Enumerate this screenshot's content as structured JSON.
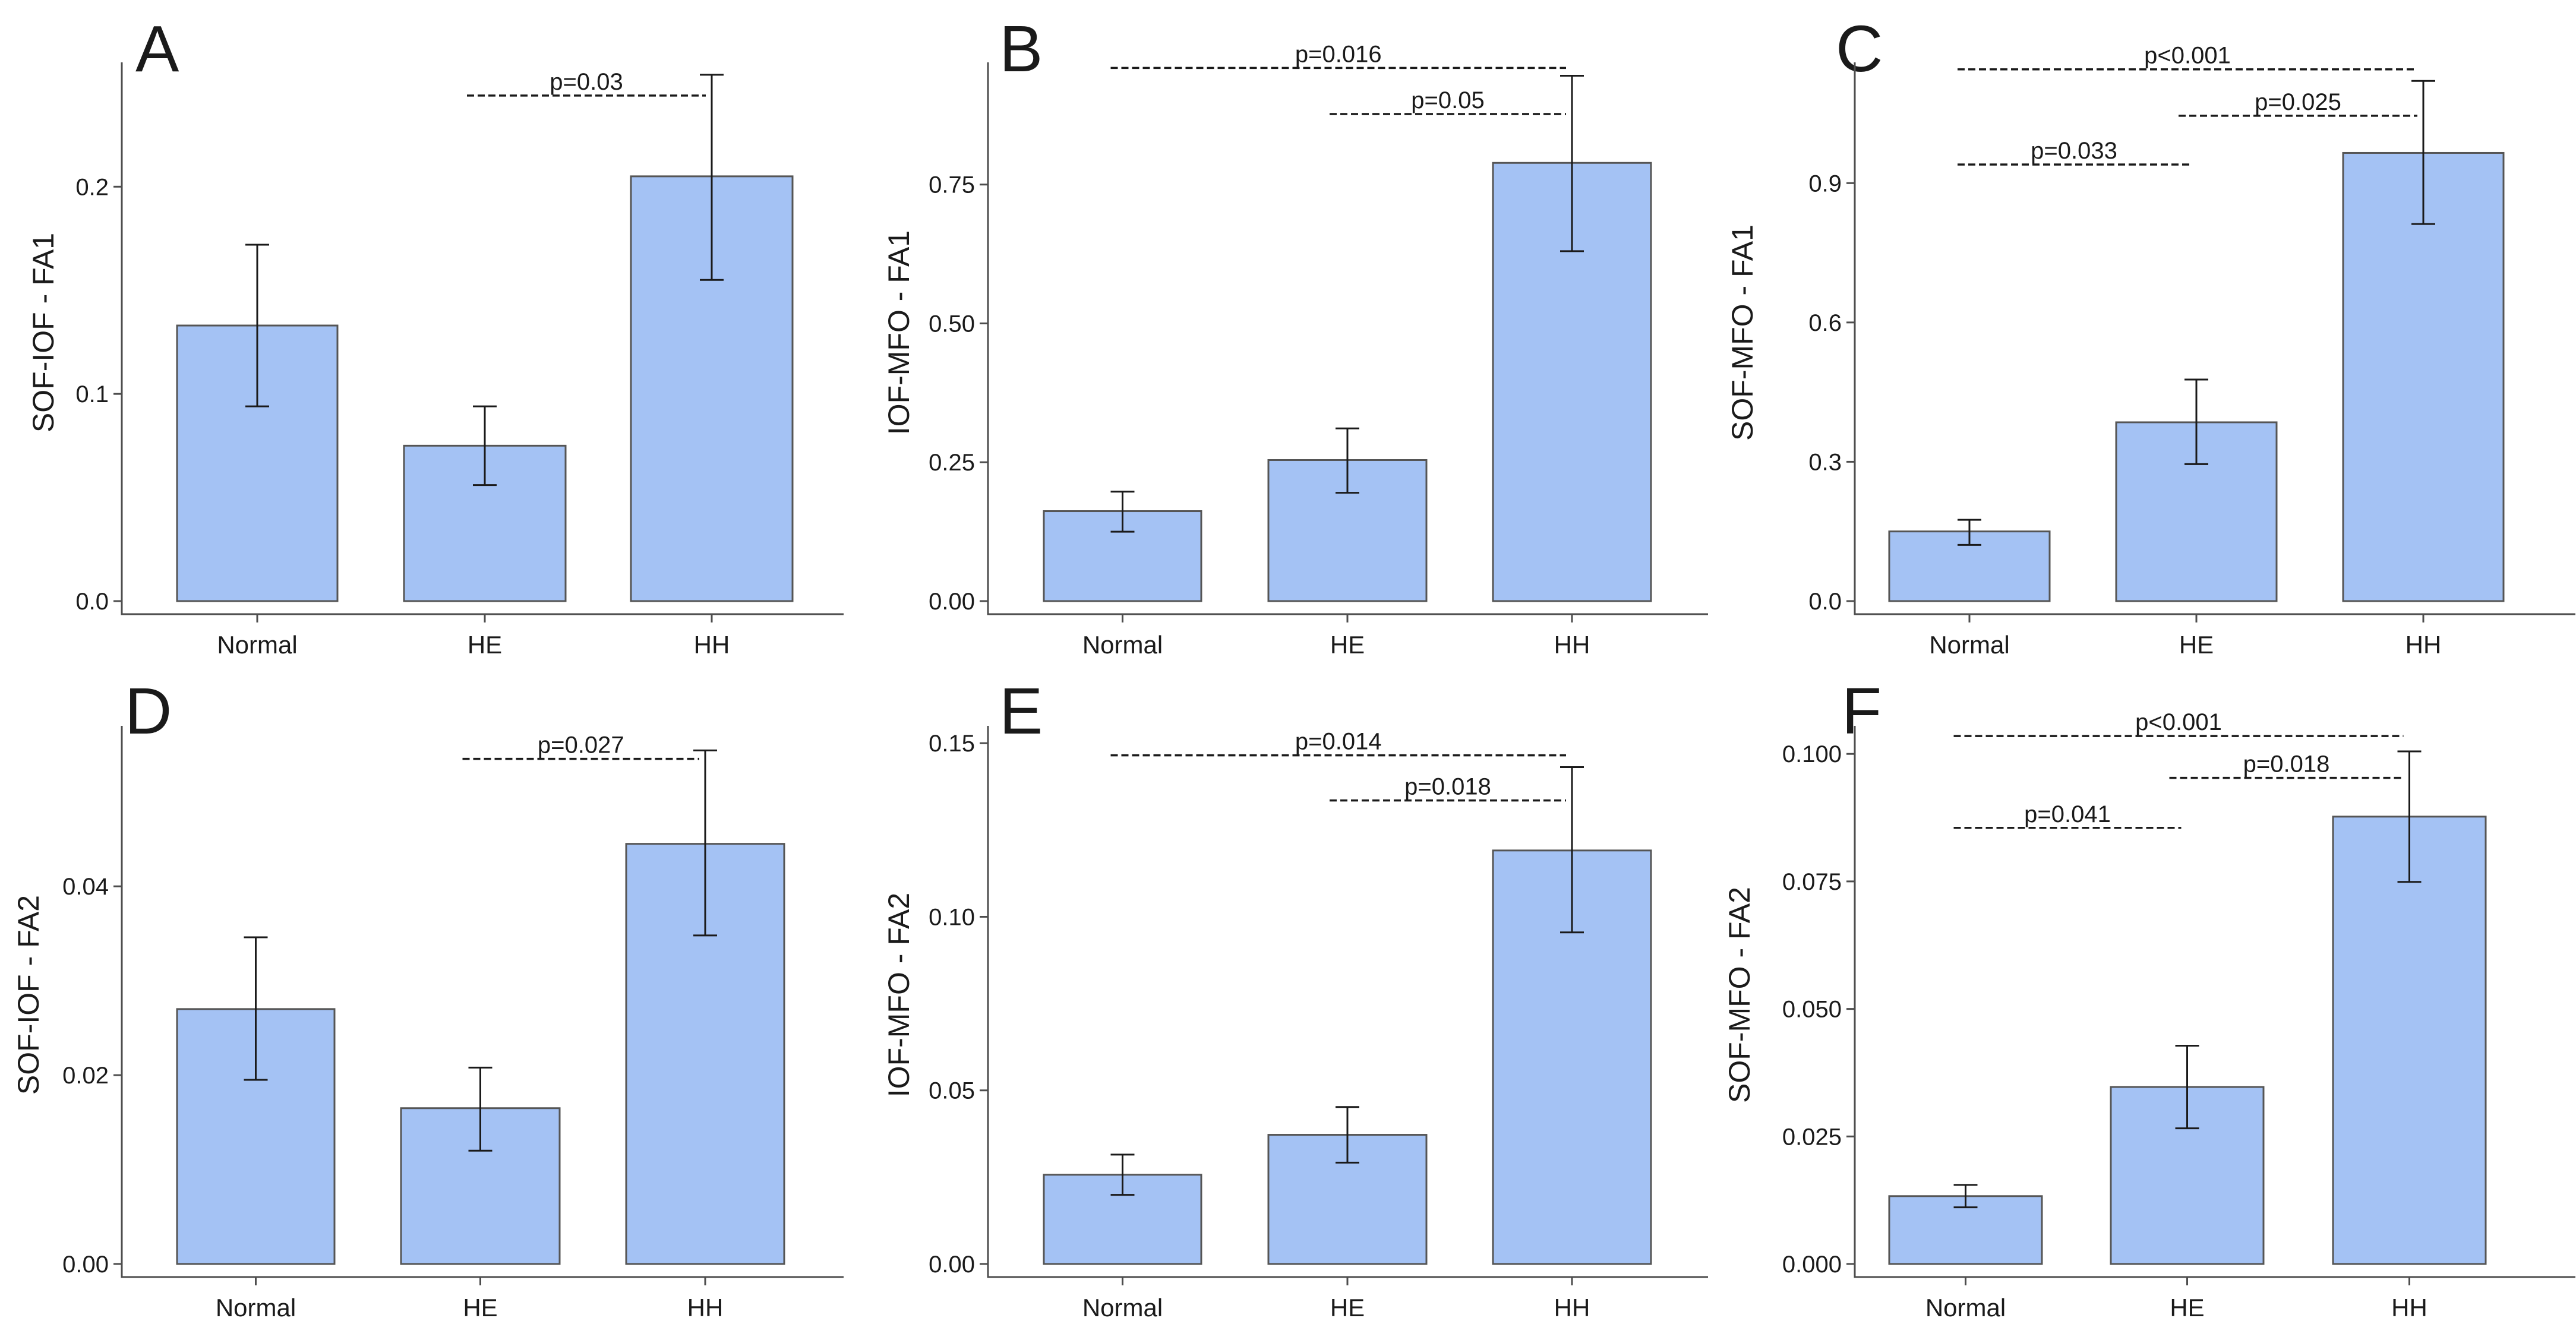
{
  "chart_data": [
    {
      "panel": "A",
      "type": "bar",
      "ylabel": "SOF-IOF - FA1",
      "categories": [
        "Normal",
        "HE",
        "HH"
      ],
      "values": [
        0.133,
        0.075,
        0.205
      ],
      "error_low": [
        0.094,
        0.056,
        0.155
      ],
      "error_high": [
        0.172,
        0.094,
        0.254
      ],
      "ylim": [
        0,
        0.26
      ],
      "yticks": [
        0.0,
        0.1,
        0.2
      ],
      "ytick_labels": [
        "0.0",
        "0.1",
        "0.2"
      ],
      "annotations": [
        {
          "label": "p=0.03",
          "x1": 1,
          "x2": 2,
          "y": 0.244
        }
      ]
    },
    {
      "panel": "B",
      "type": "bar",
      "ylabel": "IOF-MFO - FA1",
      "categories": [
        "Normal",
        "HE",
        "HH"
      ],
      "values": [
        0.162,
        0.254,
        0.789
      ],
      "error_low": [
        0.125,
        0.195,
        0.63
      ],
      "error_high": [
        0.197,
        0.311,
        0.946
      ],
      "ylim": [
        0,
        0.97
      ],
      "yticks": [
        0.0,
        0.25,
        0.5,
        0.75
      ],
      "ytick_labels": [
        "0.00",
        "0.25",
        "0.50",
        "0.75"
      ],
      "annotations": [
        {
          "label": "p=0.016",
          "x1": 0,
          "x2": 2,
          "y": 0.96
        },
        {
          "label": "p=0.05",
          "x1": 1,
          "x2": 2,
          "y": 0.877
        }
      ]
    },
    {
      "panel": "C",
      "type": "bar",
      "ylabel": "SOF-MFO - FA1",
      "categories": [
        "Normal",
        "HE",
        "HH"
      ],
      "values": [
        0.15,
        0.385,
        0.965
      ],
      "error_low": [
        0.121,
        0.295,
        0.812
      ],
      "error_high": [
        0.175,
        0.477,
        1.12
      ],
      "ylim": [
        0,
        1.16
      ],
      "yticks": [
        0.0,
        0.3,
        0.6,
        0.9
      ],
      "ytick_labels": [
        "0.0",
        "0.3",
        "0.6",
        "0.9"
      ],
      "annotations": [
        {
          "label": "p<0.001",
          "x1": 0,
          "x2": 2,
          "y": 1.145
        },
        {
          "label": "p=0.025",
          "x1": 1,
          "x2": 2,
          "y": 1.045
        },
        {
          "label": "p=0.033",
          "x1": 0,
          "x2": 1,
          "y": 0.94
        }
      ]
    },
    {
      "panel": "D",
      "type": "bar",
      "ylabel": "SOF-IOF - FA2",
      "categories": [
        "Normal",
        "HE",
        "HH"
      ],
      "values": [
        0.027,
        0.0165,
        0.0445
      ],
      "error_low": [
        0.0195,
        0.012,
        0.0348
      ],
      "error_high": [
        0.0346,
        0.0208,
        0.0544
      ],
      "ylim": [
        0,
        0.057
      ],
      "yticks": [
        0.0,
        0.02,
        0.04
      ],
      "ytick_labels": [
        "0.00",
        "0.02",
        "0.04"
      ],
      "annotations": [
        {
          "label": "p=0.027",
          "x1": 1,
          "x2": 2,
          "y": 0.0535
        }
      ]
    },
    {
      "panel": "E",
      "type": "bar",
      "ylabel": "IOF-MFO - FA2",
      "categories": [
        "Normal",
        "HE",
        "HH"
      ],
      "values": [
        0.0257,
        0.0372,
        0.1191
      ],
      "error_low": [
        0.0199,
        0.0292,
        0.0955
      ],
      "error_high": [
        0.0315,
        0.0452,
        0.1431
      ],
      "ylim": [
        0,
        0.155
      ],
      "yticks": [
        0.0,
        0.05,
        0.1,
        0.15
      ],
      "ytick_labels": [
        "0.00",
        "0.05",
        "0.10",
        "0.15"
      ],
      "annotations": [
        {
          "label": "p=0.014",
          "x1": 0,
          "x2": 2,
          "y": 0.1465
        },
        {
          "label": "p=0.018",
          "x1": 1,
          "x2": 2,
          "y": 0.1335
        }
      ]
    },
    {
      "panel": "F",
      "type": "bar",
      "ylabel": "SOF-MFO - FA2",
      "categories": [
        "Normal",
        "HE",
        "HH"
      ],
      "values": [
        0.0133,
        0.0347,
        0.0877
      ],
      "error_low": [
        0.0111,
        0.0266,
        0.0749
      ],
      "error_high": [
        0.0155,
        0.0428,
        0.1005
      ],
      "ylim": [
        0,
        0.1055
      ],
      "yticks": [
        0.0,
        0.025,
        0.05,
        0.075,
        0.1
      ],
      "ytick_labels": [
        "0.000",
        "0.025",
        "0.050",
        "0.075",
        "0.100"
      ],
      "annotations": [
        {
          "label": "p<0.001",
          "x1": 0,
          "x2": 2,
          "y": 0.1035
        },
        {
          "label": "p=0.018",
          "x1": 1,
          "x2": 2,
          "y": 0.0953
        },
        {
          "label": "p=0.041",
          "x1": 0,
          "x2": 1,
          "y": 0.0855
        }
      ]
    }
  ]
}
